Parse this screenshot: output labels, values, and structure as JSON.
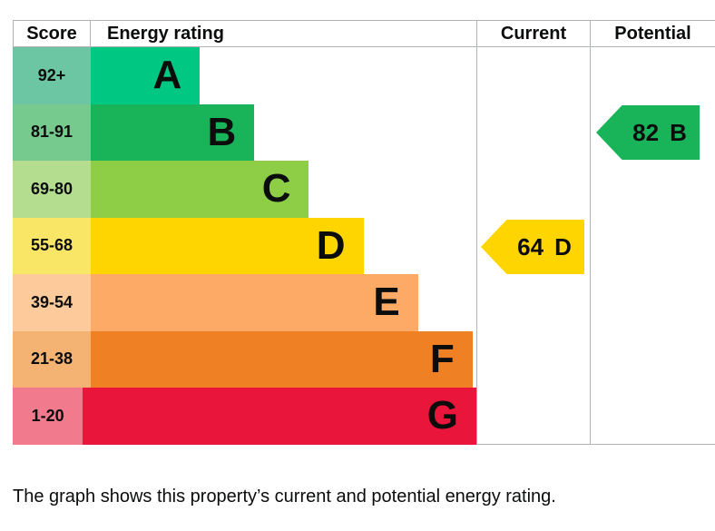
{
  "header": {
    "score": "Score",
    "rating": "Energy rating",
    "current": "Current",
    "potential": "Potential"
  },
  "bands": [
    {
      "score": "92+",
      "letter": "A",
      "bar_color": "#00c781",
      "score_tint": "#6cc5a3",
      "bar_width": "23.53%"
    },
    {
      "score": "81-91",
      "letter": "B",
      "bar_color": "#19b459",
      "score_tint": "#77ca8e",
      "bar_width": "35.29%"
    },
    {
      "score": "69-80",
      "letter": "C",
      "bar_color": "#8dce46",
      "score_tint": "#b4dd90",
      "bar_width": "47.06%"
    },
    {
      "score": "55-68",
      "letter": "D",
      "bar_color": "#ffd500",
      "score_tint": "#f9e566",
      "bar_width": "58.82%"
    },
    {
      "score": "39-54",
      "letter": "E",
      "bar_color": "#fcaa65",
      "score_tint": "#fdca9c",
      "bar_width": "70.59%"
    },
    {
      "score": "21-38",
      "letter": "F",
      "bar_color": "#ef8023",
      "score_tint": "#f4b273",
      "bar_width": "82.35%"
    },
    {
      "score": "1-20",
      "letter": "G",
      "bar_color": "#e9153b",
      "score_tint": "#f17b8d",
      "bar_width": "94.12%"
    }
  ],
  "current": {
    "value": "64",
    "letter": "D",
    "color": "#ffd500"
  },
  "potential": {
    "value": "82",
    "letter": "B",
    "color": "#19b459"
  },
  "footer": "The graph shows this property’s current and potential energy rating.",
  "chart_data": {
    "type": "bar",
    "title": "Energy rating",
    "categories": [
      "A",
      "B",
      "C",
      "D",
      "E",
      "F",
      "G"
    ],
    "score_ranges": [
      "92+",
      "81-91",
      "69-80",
      "55-68",
      "39-54",
      "21-38",
      "1-20"
    ],
    "bar_widths_relative": [
      1,
      1.5,
      2,
      2.5,
      3,
      3.5,
      4
    ],
    "band_colors": [
      "#00c781",
      "#19b459",
      "#8dce46",
      "#ffd500",
      "#fcaa65",
      "#ef8023",
      "#e9153b"
    ],
    "score_cell_tints": [
      "#6cc5a3",
      "#77ca8e",
      "#b4dd90",
      "#f9e566",
      "#fdca9c",
      "#f4b273",
      "#f17b8d"
    ],
    "columns": [
      "Score",
      "Energy rating",
      "Current",
      "Potential"
    ],
    "markers": [
      {
        "name": "Current",
        "value": 64,
        "band": "D",
        "color": "#ffd500"
      },
      {
        "name": "Potential",
        "value": 82,
        "band": "B",
        "color": "#19b459"
      }
    ],
    "legend_position": "none",
    "grid": false
  }
}
